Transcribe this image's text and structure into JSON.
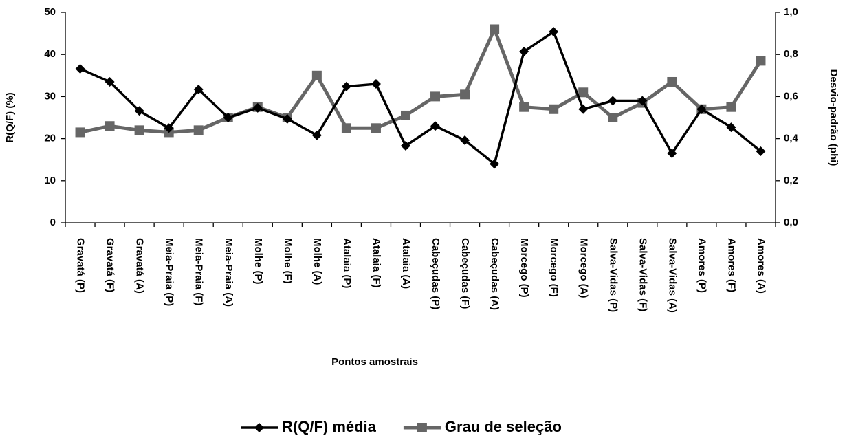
{
  "chart_data": {
    "type": "line",
    "categories": [
      "Gravatá (P)",
      "Gravatá (F)",
      "Gravatá (A)",
      "Meia-Praia (P)",
      "Meia-Praia (F)",
      "Meia-Praia (A)",
      "Molhe (P)",
      "Molhe (F)",
      "Molhe (A)",
      "Atalaia (P)",
      "Atalaia (F)",
      "Atalaia (A)",
      "Cabeçudas (P)",
      "Cabeçudas (F)",
      "Cabeçudas (A)",
      "Morcego (P)",
      "Morcego (F)",
      "Morcego (A)",
      "Salva-Vidas (P)",
      "Salva-Vidas (F)",
      "Salva-Vidas (A)",
      "Amores (P)",
      "Amores (F)",
      "Amores (A)"
    ],
    "xlabel": "Pontos amostrais",
    "ylabel": "R(Q/F) (%)",
    "y2label": "Desvio-padrão (phi)",
    "ylim": [
      0,
      50
    ],
    "yticks": [
      0,
      10,
      20,
      30,
      40,
      50
    ],
    "y2lim": [
      0,
      1
    ],
    "y2ticks": [
      {
        "value": 0,
        "label": "0,0"
      },
      {
        "value": 0.2,
        "label": "0,2"
      },
      {
        "value": 0.4,
        "label": "0,4"
      },
      {
        "value": 0.6,
        "label": "0,6"
      },
      {
        "value": 0.8,
        "label": "0,8"
      },
      {
        "value": 1,
        "label": "1,0"
      }
    ],
    "legend": "bottom",
    "series": [
      {
        "name": "R(Q/F) média",
        "color": "#000000",
        "marker": "diamond",
        "values": [
          36.6,
          33.5,
          26.6,
          22.5,
          31.7,
          25,
          27.3,
          24.7,
          20.8,
          32.4,
          33,
          18.3,
          23,
          19.6,
          14,
          40.7,
          45.4,
          27,
          29,
          29,
          16.5,
          27,
          22.7,
          17
        ]
      },
      {
        "name": "Grau de seleção",
        "color": "#666666",
        "marker": "square",
        "axis": "y2",
        "values": [
          0.43,
          0.46,
          0.44,
          0.43,
          0.44,
          0.5,
          0.55,
          0.5,
          0.7,
          0.45,
          0.45,
          0.51,
          0.6,
          0.61,
          0.92,
          0.55,
          0.54,
          0.62,
          0.5,
          0.57,
          0.67,
          0.54,
          0.55,
          0.77
        ]
      }
    ]
  }
}
